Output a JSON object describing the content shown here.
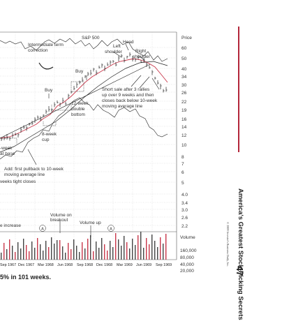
{
  "chart": {
    "index_label": "S&P 500",
    "price_axis_title": "Price",
    "volume_axis_title": "Volume",
    "price_ticks": [
      "60",
      "50",
      "40",
      "34",
      "30",
      "26",
      "22",
      "19",
      "16",
      "14",
      "12",
      "10",
      "8",
      "7",
      "6",
      "5",
      "4.0",
      "3.4",
      "3.0",
      "2.6",
      "2.2"
    ],
    "volume_ticks": [
      "160,000",
      "80,000",
      "40,000",
      "20,000"
    ],
    "x_labels": [
      "Sep 1967",
      "Dec 1967",
      "Mar 1968",
      "Jun 1968",
      "Sep 1968",
      "Dec 1968",
      "Mar 1969",
      "Jun 1969",
      "Sep 1969"
    ]
  },
  "annotations": {
    "intermediate_term_1": "Intermediate term",
    "intermediate_term_2": "correction",
    "head": "Head",
    "left_shoulder_1": "Left",
    "left_shoulder_2": "shoulder",
    "right_shoulder_1": "Right",
    "right_shoulder_2": "shoulder",
    "buy_upper": "Buy",
    "buy_lower": "Buy",
    "short_1": "Short sale after 3 rallies",
    "short_2": "up over 9 weeks and then",
    "short_3": "closes back below 10-week",
    "short_4": "moving average line",
    "double_1": "12-week",
    "double_2": "double",
    "double_3": "bottom",
    "cup_1": "8-week",
    "cup_2": "cup",
    "base_1": "-week",
    "base_2": "at base",
    "pullback_1": "Add: first pullback to 10-week",
    "pullback_2": "moving average line",
    "tight": "veeks tight closes",
    "vol_breakout_1": "Volume on",
    "vol_breakout_2": "breakout",
    "vol_up": "Volume up",
    "vol_increase": "e increase",
    "circle_a": "A",
    "circle_b": "A"
  },
  "caption": "5% in 101 weeks.",
  "side": {
    "title": "America's Greatest Stock-Picking Secrets",
    "credit": "© 2009 Investor's Business Daily, Inc.",
    "page_number": "47"
  },
  "colors": {
    "accent_red": "#b3263a",
    "moving_average_red": "#c8374a",
    "volume_bar": "#444444"
  }
}
